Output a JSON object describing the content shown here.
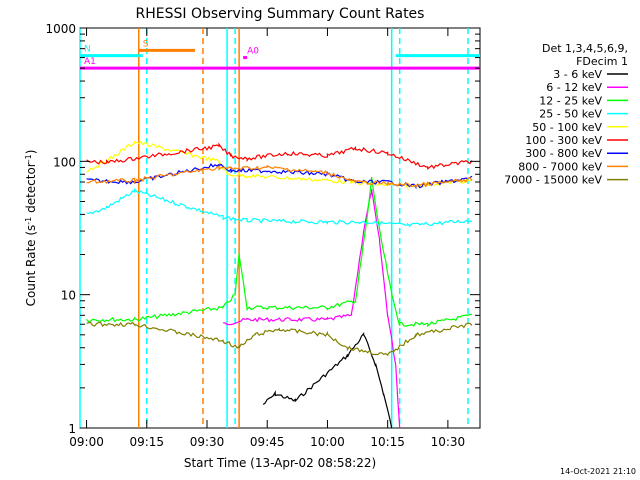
{
  "chart_data": {
    "type": "line",
    "title": "RHESSI Observing Summary Count Rates",
    "xlabel": "Start Time (13-Apr-02 08:58:22)",
    "ylabel_main": "Count Rate (s",
    "ylabel_sup1": "-1",
    "ylabel_mid": " detector",
    "ylabel_sup2": "-1",
    "ylabel_end": ")",
    "y_scale": "log",
    "ylim": [
      1,
      1000
    ],
    "xlim": [
      "08:58:22",
      "10:38:00"
    ],
    "x_ticks": [
      "09:00",
      "09:15",
      "09:30",
      "09:45",
      "10:00",
      "10:15",
      "10:30"
    ],
    "y_ticks": [
      "1",
      "10",
      "100",
      "1000"
    ],
    "legend_header": [
      "Det 1,3,4,5,6,9,",
      "FDecim 1"
    ],
    "legend_position": "right",
    "timestamp": "14-Oct-2021 21:10",
    "series": [
      {
        "name": "3 - 6 keV",
        "color": "#000000",
        "points": [
          [
            "09:44",
            1.5
          ],
          [
            "09:47",
            1.8
          ],
          [
            "09:52",
            1.6
          ],
          [
            "10:05",
            3.5
          ],
          [
            "10:09",
            5
          ],
          [
            "10:12",
            3
          ],
          [
            "10:14",
            1.8
          ],
          [
            "10:16",
            1
          ]
        ]
      },
      {
        "name": "6 - 12 keV",
        "color": "#ff00ff",
        "points": [
          [
            "09:34",
            6
          ],
          [
            "09:40",
            6.5
          ],
          [
            "10:00",
            6.5
          ],
          [
            "10:06",
            7
          ],
          [
            "10:09",
            30
          ],
          [
            "10:11",
            60
          ],
          [
            "10:13",
            25
          ],
          [
            "10:15",
            7
          ],
          [
            "10:17",
            3
          ],
          [
            "10:18",
            1
          ]
        ]
      },
      {
        "name": "12 - 25 keV",
        "color": "#00ff00",
        "points": [
          [
            "09:00",
            6.5
          ],
          [
            "09:12",
            6.5
          ],
          [
            "09:34",
            8
          ],
          [
            "09:37",
            10
          ],
          [
            "09:38",
            20
          ],
          [
            "09:40",
            8
          ],
          [
            "10:00",
            8
          ],
          [
            "10:07",
            9
          ],
          [
            "10:10",
            40
          ],
          [
            "10:11",
            75
          ],
          [
            "10:13",
            30
          ],
          [
            "10:16",
            10
          ],
          [
            "10:18",
            6
          ],
          [
            "10:25",
            6
          ],
          [
            "10:36",
            7
          ]
        ]
      },
      {
        "name": "25 - 50 keV",
        "color": "#00ffff",
        "points": [
          [
            "09:00",
            40
          ],
          [
            "09:05",
            45
          ],
          [
            "09:12",
            60
          ],
          [
            "09:34",
            38
          ],
          [
            "09:40",
            36
          ],
          [
            "10:00",
            35
          ],
          [
            "10:10",
            35
          ],
          [
            "10:20",
            33
          ],
          [
            "10:36",
            36
          ]
        ]
      },
      {
        "name": "50 - 100 keV",
        "color": "#ffff00",
        "points": [
          [
            "09:00",
            85
          ],
          [
            "09:05",
            100
          ],
          [
            "09:12",
            140
          ],
          [
            "09:33",
            100
          ],
          [
            "09:35",
            80
          ],
          [
            "09:40",
            78
          ],
          [
            "10:00",
            72
          ],
          [
            "10:10",
            68
          ],
          [
            "10:20",
            65
          ],
          [
            "10:36",
            72
          ]
        ]
      },
      {
        "name": "100 - 300 keV",
        "color": "#ff0000",
        "points": [
          [
            "09:00",
            100
          ],
          [
            "09:05",
            98
          ],
          [
            "09:12",
            105
          ],
          [
            "09:33",
            130
          ],
          [
            "09:36",
            110
          ],
          [
            "09:40",
            105
          ],
          [
            "09:50",
            115
          ],
          [
            "10:00",
            110
          ],
          [
            "10:07",
            125
          ],
          [
            "10:15",
            115
          ],
          [
            "10:25",
            90
          ],
          [
            "10:36",
            100
          ]
        ]
      },
      {
        "name": "300 - 800 keV",
        "color": "#0000ff",
        "points": [
          [
            "09:00",
            72
          ],
          [
            "09:12",
            70
          ],
          [
            "09:33",
            95
          ],
          [
            "09:36",
            85
          ],
          [
            "09:45",
            85
          ],
          [
            "10:00",
            80
          ],
          [
            "10:07",
            70
          ],
          [
            "10:15",
            70
          ],
          [
            "10:22",
            65
          ],
          [
            "10:36",
            75
          ]
        ]
      },
      {
        "name": "800 - 7000 keV",
        "color": "#ff8000",
        "points": [
          [
            "09:00",
            70
          ],
          [
            "09:12",
            72
          ],
          [
            "09:33",
            90
          ],
          [
            "09:36",
            88
          ],
          [
            "09:45",
            90
          ],
          [
            "10:00",
            82
          ],
          [
            "10:07",
            70
          ],
          [
            "10:15",
            68
          ],
          [
            "10:22",
            66
          ],
          [
            "10:36",
            73
          ]
        ]
      },
      {
        "name": "7000 - 15000 keV",
        "color": "#808000",
        "points": [
          [
            "09:00",
            6
          ],
          [
            "09:12",
            6
          ],
          [
            "09:34",
            4.5
          ],
          [
            "09:38",
            4
          ],
          [
            "09:42",
            5
          ],
          [
            "09:48",
            5.5
          ],
          [
            "10:00",
            5
          ],
          [
            "10:05",
            4
          ],
          [
            "10:15",
            3.5
          ],
          [
            "10:22",
            5
          ],
          [
            "10:36",
            6
          ]
        ]
      }
    ],
    "flag_bars": [
      {
        "label": "S",
        "color": "#ff8000",
        "start": "09:13",
        "end": "09:27",
        "level": 680
      },
      {
        "label": "N",
        "color": "#00ffff",
        "start": "08:58:22",
        "end": "09:14",
        "level": 620
      },
      {
        "label": "",
        "color": "#00ffff",
        "start": "10:17",
        "end": "10:38",
        "level": 620
      },
      {
        "label": "A0",
        "color": "#ff00ff",
        "start": "09:39",
        "end": "09:40",
        "level": 600
      },
      {
        "label": "A1",
        "color": "#ff00ff",
        "start": "08:58:22",
        "end": "10:38",
        "level": 500
      }
    ],
    "vertical_lines": [
      {
        "time": "08:58:22",
        "color": "#00ffff",
        "style": "solid"
      },
      {
        "time": "09:13",
        "color": "#ff8000",
        "style": "solid"
      },
      {
        "time": "09:15",
        "color": "#00ffff",
        "style": "dashed"
      },
      {
        "time": "09:29",
        "color": "#ff8000",
        "style": "dashed"
      },
      {
        "time": "09:35",
        "color": "#00ffff",
        "style": "solid"
      },
      {
        "time": "09:37",
        "color": "#00ffff",
        "style": "dashed"
      },
      {
        "time": "09:38",
        "color": "#ff8000",
        "style": "solid"
      },
      {
        "time": "10:16",
        "color": "#00ffff",
        "style": "solid"
      },
      {
        "time": "10:18",
        "color": "#00ffff",
        "style": "dashed"
      },
      {
        "time": "10:35",
        "color": "#00ffff",
        "style": "dashed"
      }
    ]
  }
}
